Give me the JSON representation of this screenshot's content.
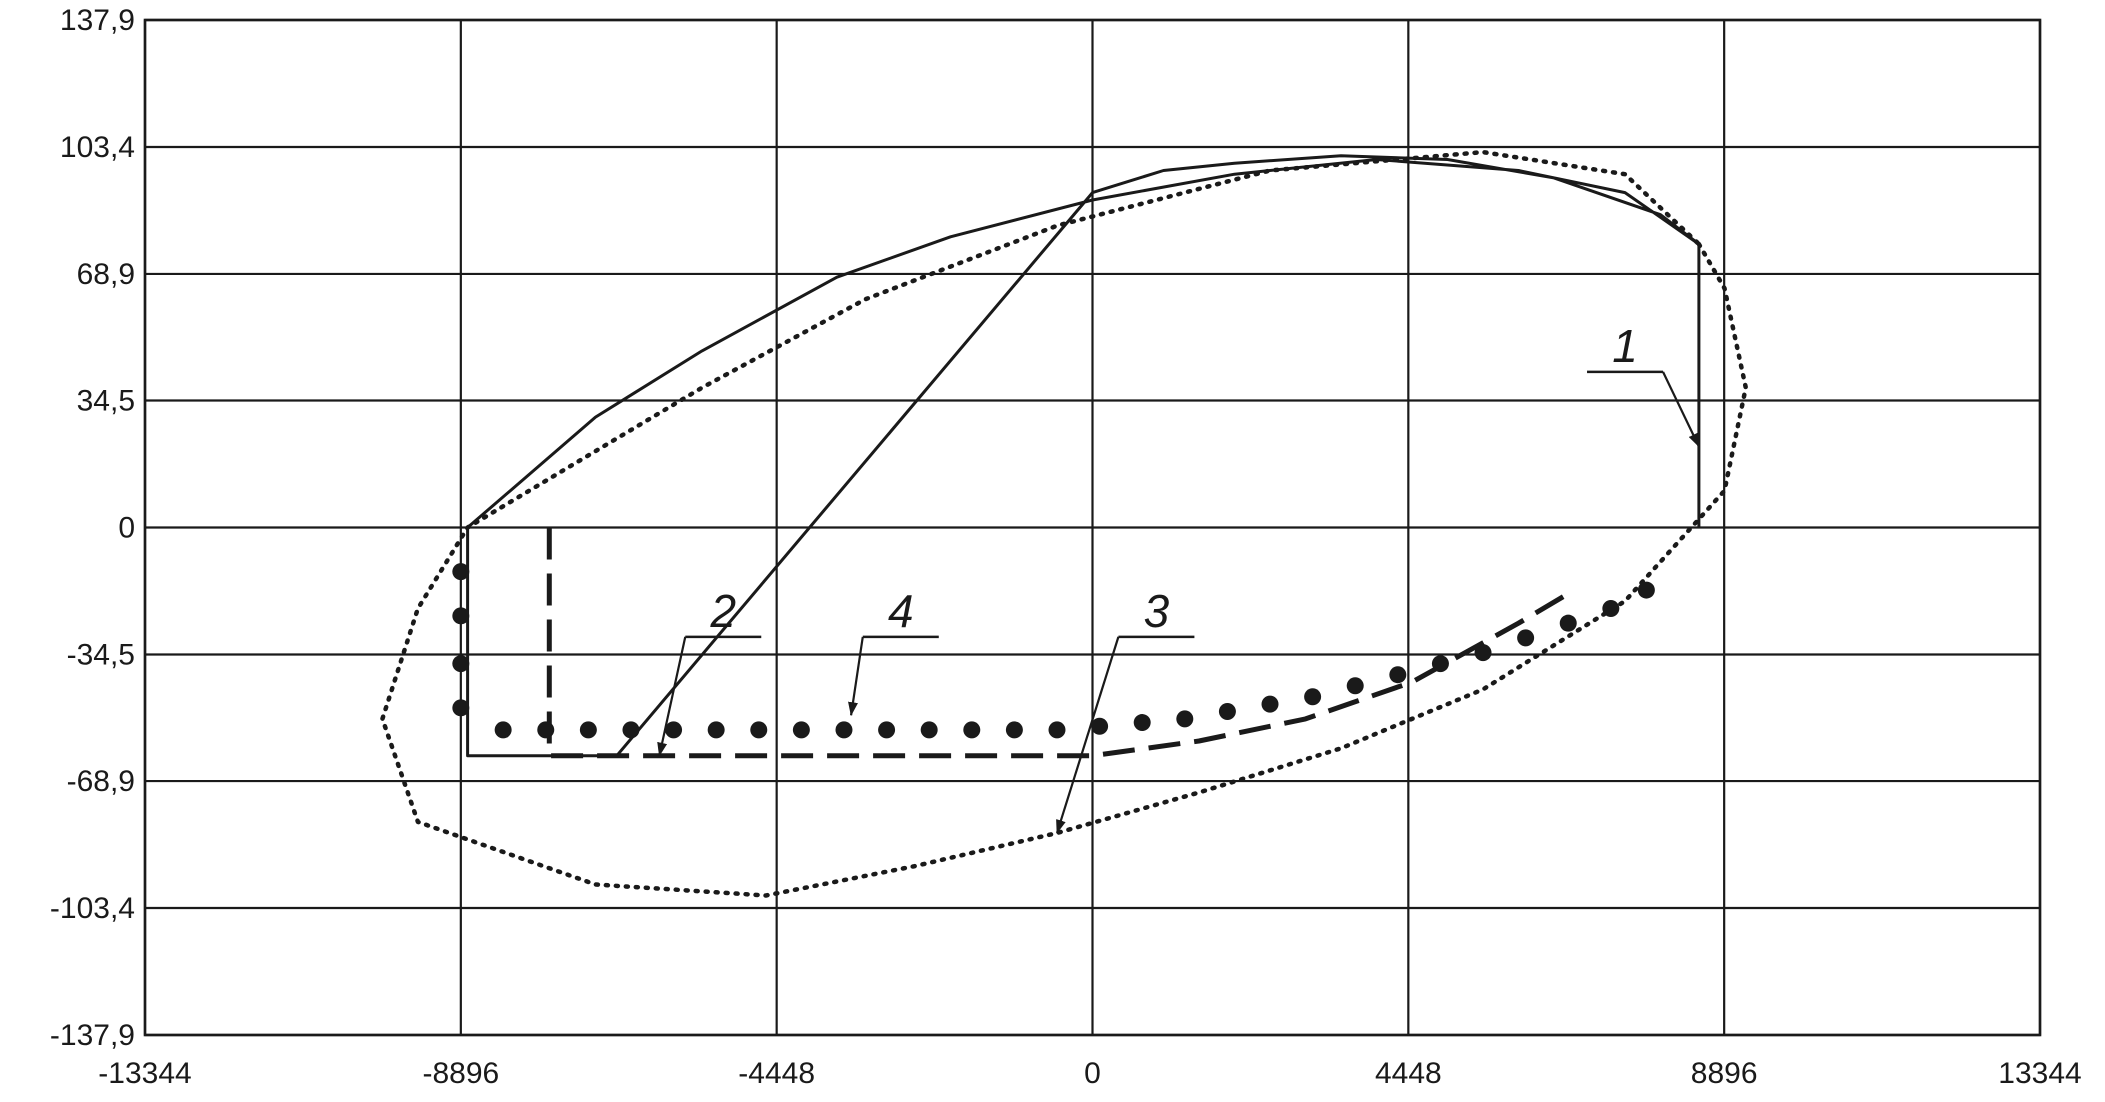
{
  "chart_data": {
    "type": "line",
    "title": "",
    "xlabel": "",
    "ylabel": "",
    "xlim": [
      -13344,
      13344
    ],
    "ylim": [
      -137.9,
      137.9
    ],
    "grid": true,
    "x_ticks": [
      -13344,
      -8896,
      -4448,
      0,
      4448,
      8896,
      13344
    ],
    "x_tick_labels": [
      "-13344",
      "-8896",
      "-4448",
      "0",
      "4448",
      "8896",
      "13344"
    ],
    "y_ticks": [
      137.9,
      103.4,
      68.9,
      34.5,
      0,
      -34.5,
      -68.9,
      -103.4,
      -137.9
    ],
    "y_tick_labels": [
      "137,9",
      "103,4",
      "68,9",
      "34,5",
      "0",
      "-34,5",
      "-68,9",
      "-103,4",
      "-137,9"
    ],
    "colors": {
      "ink": "#1a1a1a",
      "background": "#ffffff"
    },
    "series": [
      {
        "label": "1",
        "style": "solid",
        "x": [
          8540,
          8540,
          8000,
          6500,
          5000,
          3500,
          2000,
          1000,
          0,
          -6700,
          -8800,
          -8800,
          -8200,
          -7000,
          -5500,
          -3600,
          -2000,
          0,
          2000,
          4000,
          6000,
          7500,
          8540
        ],
        "y": [
          0,
          77,
          85,
          95,
          100,
          101,
          99,
          97,
          91,
          -62,
          -62,
          0,
          10,
          30,
          48,
          68,
          79,
          89,
          96,
          100,
          97,
          91,
          77
        ]
      },
      {
        "label": "2",
        "style": "dashed",
        "x": [
          -7650,
          -7650,
          -6000,
          -4000,
          -2000,
          0,
          1500,
          3000,
          4500,
          6000,
          6700
        ],
        "y": [
          0,
          -62,
          -62,
          -62,
          -62,
          -62,
          -58,
          -52,
          -42,
          -26,
          -18
        ]
      },
      {
        "label": "3",
        "style": "dotted",
        "x": [
          8540,
          8900,
          9200,
          8900,
          7500,
          5500,
          3500,
          1500,
          -500,
          -2500,
          -4600,
          -7000,
          -9500,
          -10000,
          -9500,
          -8800,
          -7500,
          -5500,
          -3200,
          -500,
          2500,
          5500,
          7500,
          8540
        ],
        "y": [
          77,
          65,
          38,
          10,
          -20,
          -44,
          -60,
          -72,
          -83,
          -92,
          -100,
          -97,
          -80,
          -52,
          -22,
          0,
          15,
          38,
          62,
          82,
          97,
          102,
          96,
          77
        ]
      },
      {
        "label": "4",
        "style": "dots",
        "x": [
          -8896,
          -8896,
          -8896,
          -8896,
          -8300,
          -7700,
          -7100,
          -6500,
          -5900,
          -5300,
          -4700,
          -4100,
          -3500,
          -2900,
          -2300,
          -1700,
          -1100,
          -500,
          100,
          700,
          1300,
          1900,
          2500,
          3100,
          3700,
          4300,
          4900,
          5500,
          6100,
          6700,
          7300,
          7800
        ],
        "y": [
          -12,
          -24,
          -37,
          -49,
          -55,
          -55,
          -55,
          -55,
          -55,
          -55,
          -55,
          -55,
          -55,
          -55,
          -55,
          -55,
          -55,
          -55,
          -54,
          -53,
          -52,
          -50,
          -48,
          -46,
          -43,
          -40,
          -37,
          -34,
          -30,
          -26,
          -22,
          -17
        ]
      }
    ],
    "annotations": [
      "1",
      "2",
      "3",
      "4"
    ]
  }
}
